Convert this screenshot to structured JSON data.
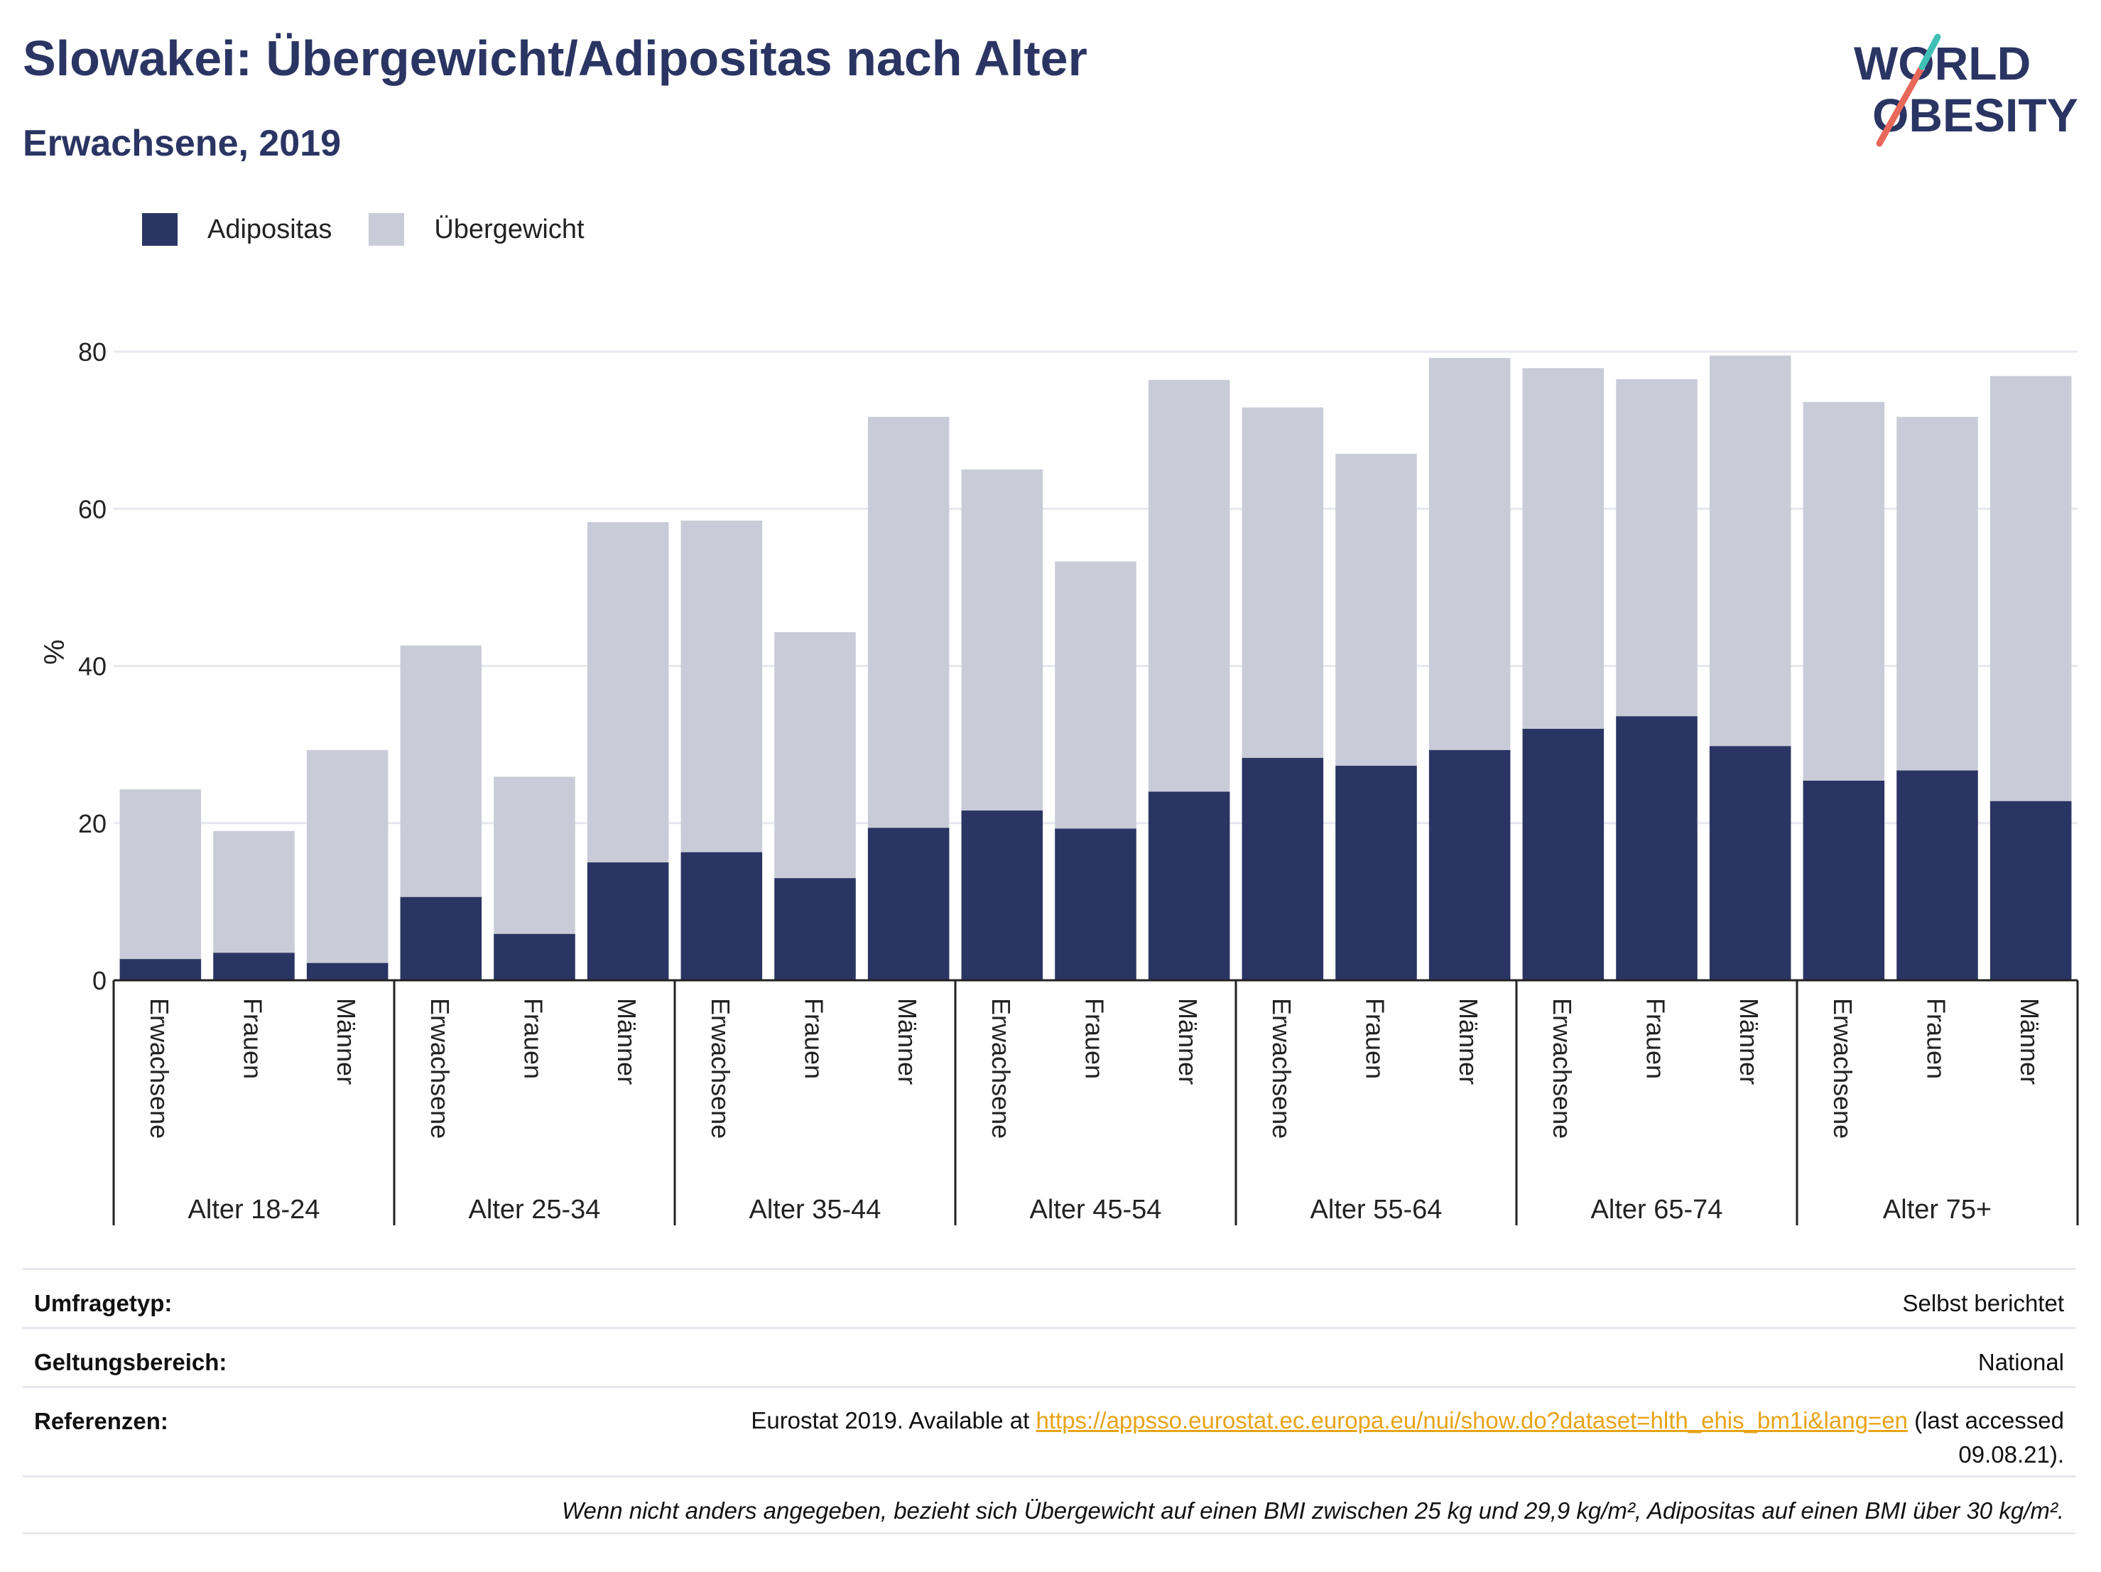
{
  "header": {
    "title": "Slowakei: Übergewicht/Adipositas nach Alter",
    "subtitle": "Erwachsene, 2019"
  },
  "logo": {
    "line1": "WORLD",
    "line2": "OBESITY",
    "accent": "#e8685a",
    "accent2": "#3fbfb6",
    "color": "#2a3563"
  },
  "legend": {
    "obesity_label": "Adipositas",
    "overweight_label": "Übergewicht"
  },
  "colors": {
    "obesity": "#2a3563",
    "overweight": "#c9ccd8",
    "grid": "#e6e8ef",
    "axis": "#222222"
  },
  "chart_data": {
    "type": "bar",
    "stacked": true,
    "ylabel": "%",
    "ylim": [
      0,
      84
    ],
    "yticks": [
      0,
      20,
      40,
      60,
      80
    ],
    "grid": true,
    "legend_position": "top-left",
    "groups": [
      "Alter 18-24",
      "Alter 25-34",
      "Alter 35-44",
      "Alter 45-54",
      "Alter 55-64",
      "Alter 65-74",
      "Alter 75+"
    ],
    "subcategories": [
      "Erwachsene",
      "Frauen",
      "Männer"
    ],
    "series": [
      {
        "name": "Adipositas",
        "values": [
          2.7,
          3.5,
          2.2,
          10.6,
          5.9,
          15.0,
          16.3,
          13.0,
          19.4,
          21.6,
          19.3,
          24.0,
          28.3,
          27.3,
          29.3,
          32.0,
          33.6,
          29.8,
          25.4,
          26.7,
          22.8
        ]
      },
      {
        "name": "Übergewicht",
        "values": [
          21.6,
          15.5,
          27.1,
          32.0,
          20.0,
          43.3,
          42.2,
          31.3,
          52.3,
          43.4,
          34.0,
          52.4,
          44.6,
          39.7,
          49.9,
          45.9,
          42.9,
          49.7,
          48.2,
          45.0,
          54.1
        ]
      }
    ]
  },
  "info": {
    "survey_label": "Umfragetyp:",
    "survey_value": "Selbst berichtet",
    "scope_label": "Geltungsbereich:",
    "scope_value": "National",
    "refs_label": "Referenzen:",
    "refs_prefix": "Eurostat 2019. Available at ",
    "refs_link": "https://appsso.eurostat.ec.europa.eu/nui/show.do?dataset=hlth_ehis_bm1i&lang=en",
    "refs_suffix": " (last accessed",
    "refs_date": "09.08.21).",
    "note": "Wenn nicht anders angegeben, bezieht sich Übergewicht auf einen BMI zwischen 25 kg und 29,9 kg/m², Adipositas auf einen BMI über 30 kg/m²."
  }
}
